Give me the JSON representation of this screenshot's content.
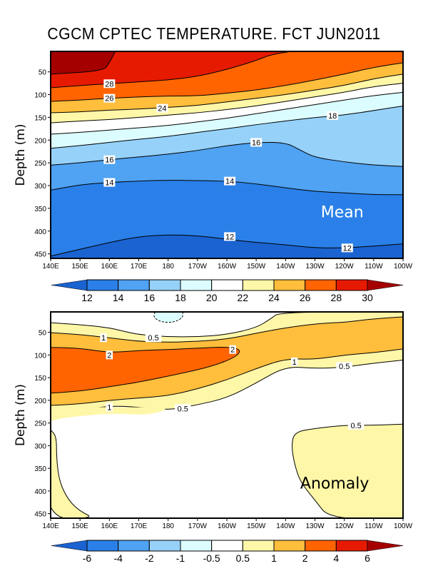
{
  "title": "CGCM CPTEC TEMPERATURE. FCT JUN2011",
  "chart_data": [
    {
      "type": "heatmap",
      "subtype": "filled-contour",
      "panel": "Mean",
      "title": "CGCM CPTEC TEMPERATURE. FCT JUN2011",
      "xlabel": "",
      "ylabel": "Depth (m)",
      "x_ticks": [
        "140E",
        "150E",
        "160E",
        "170E",
        "180",
        "170W",
        "160W",
        "150W",
        "140W",
        "130W",
        "120W",
        "110W",
        "100W"
      ],
      "x_range_lon": [
        140,
        260
      ],
      "y_ticks": [
        50,
        100,
        150,
        200,
        250,
        300,
        350,
        400,
        450
      ],
      "ylim": [
        460,
        5
      ],
      "y_inverted": true,
      "annotation": {
        "text": "Mean",
        "color": "#ffffff"
      },
      "colorbar": {
        "levels": [
          "12",
          "14",
          "16",
          "18",
          "20",
          "22",
          "24",
          "26",
          "28",
          "30"
        ],
        "colors": [
          "#1a63d0",
          "#2a80e8",
          "#50a2f2",
          "#96d1f9",
          "#dcfdff",
          "#ffffff",
          "#fff7a8",
          "#ffbe3c",
          "#ff6400",
          "#e61a00",
          "#a50000"
        ]
      },
      "contour_levels": [
        12,
        14,
        16,
        18,
        20,
        22,
        24,
        26,
        28,
        30
      ],
      "contours": [
        {
          "level": 30,
          "x": [
            140,
            158,
            160,
            162
          ],
          "y": [
            55,
            48,
            30,
            5
          ]
        },
        {
          "level": 28,
          "x": [
            140,
            150,
            160,
            170,
            180,
            190,
            200,
            210,
            215,
            222
          ],
          "y": [
            85,
            80,
            76,
            72,
            68,
            60,
            45,
            25,
            12,
            5
          ]
        },
        {
          "level": 26,
          "x": [
            140,
            150,
            160,
            170,
            180,
            190,
            200,
            210,
            220,
            230,
            240,
            250,
            260
          ],
          "y": [
            115,
            112,
            108,
            105,
            103,
            103,
            97,
            90,
            80,
            68,
            55,
            40,
            30
          ]
        },
        {
          "level": 24,
          "x": [
            140,
            150,
            160,
            170,
            180,
            190,
            200,
            210,
            220,
            230,
            240,
            250,
            260
          ],
          "y": [
            140,
            138,
            134,
            132,
            128,
            124,
            116,
            108,
            100,
            90,
            80,
            65,
            55
          ]
        },
        {
          "level": 22,
          "x": [
            140,
            150,
            160,
            170,
            180,
            190,
            200,
            210,
            220,
            230,
            240,
            250,
            260
          ],
          "y": [
            162,
            158,
            155,
            150,
            145,
            140,
            133,
            125,
            115,
            105,
            95,
            82,
            75
          ]
        },
        {
          "level": 20,
          "x": [
            140,
            150,
            160,
            170,
            180,
            190,
            200,
            210,
            220,
            230,
            240,
            250,
            260
          ],
          "y": [
            187,
            183,
            178,
            173,
            168,
            160,
            152,
            142,
            132,
            122,
            112,
            102,
            95
          ]
        },
        {
          "level": 18,
          "x": [
            140,
            150,
            160,
            170,
            180,
            190,
            200,
            210,
            220,
            230,
            240,
            250,
            260
          ],
          "y": [
            218,
            212,
            205,
            198,
            192,
            183,
            175,
            166,
            158,
            150,
            145,
            135,
            125
          ]
        },
        {
          "level": 16,
          "x": [
            140,
            150,
            160,
            170,
            180,
            190,
            200,
            210,
            220,
            225,
            230,
            240,
            250,
            260
          ],
          "y": [
            255,
            250,
            243,
            237,
            231,
            223,
            212,
            205,
            205,
            222,
            238,
            248,
            255,
            258
          ]
        },
        {
          "level": 14,
          "x": [
            140,
            150,
            160,
            170,
            180,
            190,
            200,
            210,
            220,
            230,
            240,
            250,
            260
          ],
          "y": [
            310,
            298,
            293,
            290,
            288,
            289,
            290,
            296,
            305,
            313,
            316,
            320,
            320
          ]
        },
        {
          "level": 12,
          "x": [
            140,
            150,
            160,
            170,
            180,
            190,
            200,
            210,
            220,
            230,
            240,
            250,
            260
          ],
          "y": [
            455,
            440,
            425,
            412,
            408,
            410,
            418,
            425,
            430,
            437,
            437,
            433,
            428
          ]
        }
      ],
      "contour_labels": [
        {
          "text": "28",
          "lon": 160,
          "depth": 76
        },
        {
          "text": "26",
          "lon": 160,
          "depth": 108
        },
        {
          "text": "24",
          "lon": 178,
          "depth": 130
        },
        {
          "text": "18",
          "lon": 236,
          "depth": 146
        },
        {
          "text": "16",
          "lon": 160,
          "depth": 243
        },
        {
          "text": "16",
          "lon": 210,
          "depth": 205
        },
        {
          "text": "14",
          "lon": 160,
          "depth": 293
        },
        {
          "text": "14",
          "lon": 201,
          "depth": 290
        },
        {
          "text": "12",
          "lon": 201,
          "depth": 412
        },
        {
          "text": "12",
          "lon": 241,
          "depth": 437
        }
      ]
    },
    {
      "type": "heatmap",
      "subtype": "filled-contour",
      "panel": "Anomaly",
      "xlabel": "",
      "ylabel": "Depth (m)",
      "x_ticks": [
        "140E",
        "150E",
        "160E",
        "170E",
        "180",
        "170W",
        "160W",
        "150W",
        "140W",
        "130W",
        "120W",
        "110W",
        "100W"
      ],
      "x_range_lon": [
        140,
        260
      ],
      "y_ticks": [
        50,
        100,
        150,
        200,
        250,
        300,
        350,
        400,
        450
      ],
      "ylim": [
        460,
        5
      ],
      "y_inverted": true,
      "annotation": {
        "text": "Anomaly",
        "color": "#000000"
      },
      "colorbar": {
        "levels": [
          "-6",
          "-4",
          "-2",
          "-1",
          "-0.5",
          "0.5",
          "1",
          "2",
          "4",
          "6"
        ],
        "colors": [
          "#1a63d0",
          "#2a80e8",
          "#50a2f2",
          "#96d1f9",
          "#dcfdff",
          "#ffffff",
          "#fff7a8",
          "#ffbe3c",
          "#ff6400",
          "#e61a00",
          "#a50000"
        ]
      },
      "contour_levels": [
        -0.5,
        0.5,
        1,
        2
      ],
      "regions": [
        {
          "level_range": "0.5 to 1",
          "description": "upper thermocline band and eastern deep tongue"
        },
        {
          "level_range": "1 to 2",
          "description": "band around warm core"
        },
        {
          "level_range": "2 to 4",
          "description": "warm core 140E-165W, ~85-185m"
        },
        {
          "level_range": "-1 to -0.5",
          "description": "small cool patch near 175E-178E, 5-30m"
        }
      ],
      "contour_labels": [
        {
          "text": "1",
          "lon": 158,
          "depth": 62
        },
        {
          "text": "0.5",
          "lon": 175,
          "depth": 62
        },
        {
          "text": "2",
          "lon": 160,
          "depth": 100
        },
        {
          "text": "2",
          "lon": 202,
          "depth": 88
        },
        {
          "text": "1",
          "lon": 223,
          "depth": 115
        },
        {
          "text": "0.5",
          "lon": 240,
          "depth": 125
        },
        {
          "text": "1",
          "lon": 160,
          "depth": 215
        },
        {
          "text": "0.5",
          "lon": 185,
          "depth": 218
        },
        {
          "text": "0.5",
          "lon": 244,
          "depth": 255
        }
      ]
    }
  ]
}
